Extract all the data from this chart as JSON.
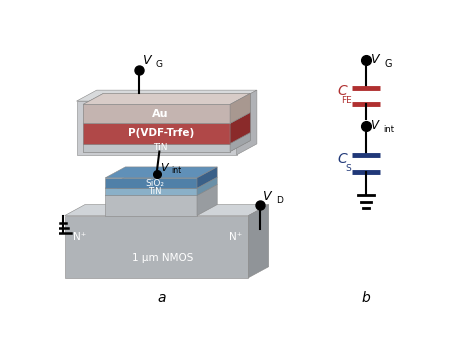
{
  "bg_color": "#ffffff",
  "title_a": "a",
  "title_b": "b",
  "gate_stack": {
    "au_front": "#c4b4b0",
    "au_top": "#d8ccc8",
    "au_side": "#a89890",
    "pvdf_front": "#b04848",
    "pvdf_top": "#c05858",
    "pvdf_side": "#8a2a2a",
    "tin_front": "#c0c4c8",
    "tin_top": "#d4d8dc",
    "tin_side": "#a0a4a8",
    "outer_front": "#c0c4c8",
    "outer_top": "#d8dcde",
    "outer_side": "#a0a4a8",
    "au_label": "Au",
    "pvdf_label": "P(VDF-Trfe)",
    "tin_label": "TiN"
  },
  "nmos": {
    "body_front": "#b0b4b8",
    "body_top": "#d0d4d8",
    "body_side": "#909498",
    "gate_top_front": "#b8bcC0",
    "gate_top_top": "#d0d4d8",
    "gate_top_side": "#989ca0",
    "tin_front": "#8ab0c8",
    "tin_top": "#9ec4d8",
    "tin_side": "#6a90a8",
    "sio2_front": "#5080a8",
    "sio2_top": "#6090b8",
    "sio2_side": "#3a6088",
    "tin_label": "TiN",
    "sio2_label": "SiO₂",
    "nplus_label": "N⁺",
    "nmos_label": "1 μm NMOS"
  },
  "circuit": {
    "cfe_color": "#b03030",
    "cs_color": "#203878",
    "wire_color": "#000000",
    "node_color": "#000000"
  }
}
